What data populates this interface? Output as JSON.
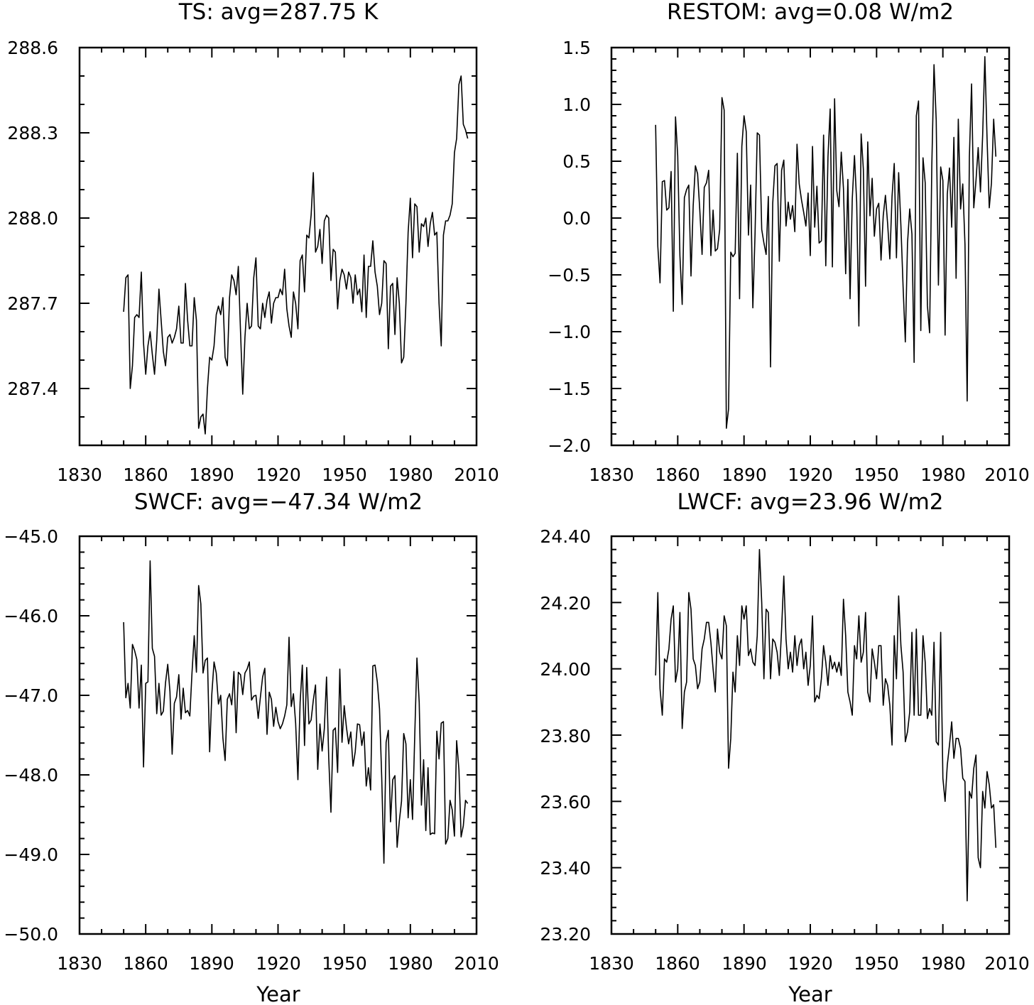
{
  "chart_data": [
    {
      "type": "line",
      "title": "TS: avg=287.75 K",
      "xlabel": "",
      "ylabel": "",
      "xlim": [
        1830,
        2010
      ],
      "ylim": [
        287.2,
        288.6
      ],
      "xticks": [
        1830,
        1860,
        1890,
        1920,
        1950,
        1980,
        2010
      ],
      "xtick_labels": [
        "1830",
        "1860",
        "1890",
        "1920",
        "1950",
        "1980",
        "2010"
      ],
      "yticks": [
        287.4,
        287.7,
        288.0,
        288.3,
        288.6
      ],
      "ytick_labels": [
        "287.4",
        "287.7",
        "288.0",
        "288.3",
        "288.6"
      ],
      "y_minor_step": 0.1,
      "x_start": 1850,
      "grid": false,
      "series": [
        {
          "values": [
            287.67,
            287.79,
            287.8,
            287.4,
            287.48,
            287.65,
            287.66,
            287.65,
            287.81,
            287.56,
            287.45,
            287.55,
            287.6,
            287.52,
            287.45,
            287.57,
            287.75,
            287.64,
            287.53,
            287.48,
            287.58,
            287.59,
            287.56,
            287.58,
            287.61,
            287.69,
            287.56,
            287.56,
            287.77,
            287.64,
            287.55,
            287.55,
            287.72,
            287.64,
            287.26,
            287.3,
            287.31,
            287.24,
            287.4,
            287.51,
            287.5,
            287.55,
            287.66,
            287.69,
            287.66,
            287.72,
            287.51,
            287.48,
            287.72,
            287.8,
            287.78,
            287.73,
            287.83,
            287.6,
            287.38,
            287.58,
            287.7,
            287.61,
            287.62,
            287.79,
            287.86,
            287.62,
            287.61,
            287.7,
            287.65,
            287.71,
            287.74,
            287.63,
            287.7,
            287.72,
            287.72,
            287.75,
            287.73,
            287.82,
            287.68,
            287.62,
            287.58,
            287.74,
            287.7,
            287.61,
            287.85,
            287.87,
            287.74,
            287.94,
            287.93,
            288.01,
            288.16,
            287.88,
            287.9,
            287.96,
            287.84,
            287.99,
            288.01,
            288.0,
            287.78,
            287.89,
            287.88,
            287.68,
            287.78,
            287.82,
            287.8,
            287.75,
            287.81,
            287.79,
            287.7,
            287.8,
            287.73,
            287.75,
            287.67,
            287.87,
            287.65,
            287.83,
            287.83,
            287.92,
            287.81,
            287.76,
            287.66,
            287.7,
            287.85,
            287.84,
            287.54,
            287.76,
            287.77,
            287.59,
            287.79,
            287.7,
            287.49,
            287.51,
            287.7,
            287.95,
            288.07,
            287.86,
            288.05,
            288.04,
            287.88,
            287.98,
            287.97,
            288.0,
            287.9,
            287.98,
            288.02,
            287.94,
            287.95,
            287.7,
            287.55,
            287.94,
            287.99,
            287.99,
            288.01,
            288.05,
            288.23,
            288.28,
            288.47,
            288.5,
            288.33,
            288.31,
            288.28
          ]
        }
      ]
    },
    {
      "type": "line",
      "title": "RESTOM: avg=0.08 W/m2",
      "xlabel": "",
      "ylabel": "",
      "xlim": [
        1830,
        2010
      ],
      "ylim": [
        -2.0,
        1.5
      ],
      "xticks": [
        1830,
        1860,
        1890,
        1920,
        1950,
        1980,
        2010
      ],
      "xtick_labels": [
        "1830",
        "1860",
        "1890",
        "1920",
        "1950",
        "1980",
        "2010"
      ],
      "yticks": [
        -2.0,
        -1.5,
        -1.0,
        -0.5,
        0.0,
        0.5,
        1.0,
        1.5
      ],
      "ytick_labels": [
        "−2.0",
        "−1.5",
        "−1.0",
        "−0.5",
        "0.0",
        "0.5",
        "1.0",
        "1.5"
      ],
      "y_minor_step": 0.1,
      "x_start": 1850,
      "grid": false,
      "series": [
        {
          "values": [
            0.82,
            -0.25,
            -0.57,
            0.32,
            0.33,
            0.07,
            0.09,
            0.41,
            -0.82,
            0.89,
            0.55,
            -0.33,
            -0.76,
            0.18,
            0.25,
            0.29,
            -0.51,
            0.11,
            0.46,
            0.39,
            0.07,
            -0.32,
            0.27,
            0.31,
            0.42,
            -0.33,
            0.07,
            -0.29,
            -0.27,
            -0.1,
            1.06,
            0.95,
            -1.85,
            -1.68,
            -0.3,
            -0.34,
            -0.31,
            0.57,
            -0.71,
            0.63,
            0.9,
            0.76,
            -0.15,
            0.29,
            -0.79,
            -0.14,
            0.75,
            0.73,
            -0.1,
            -0.22,
            -0.32,
            0.19,
            -1.31,
            0.13,
            0.46,
            0.48,
            -0.38,
            0.42,
            0.51,
            -0.07,
            0.14,
            -0.01,
            0.11,
            -0.12,
            0.65,
            0.3,
            0.16,
            0.05,
            -0.07,
            0.22,
            -0.33,
            0.63,
            -0.08,
            0.28,
            -0.22,
            -0.2,
            0.73,
            -0.42,
            0.54,
            0.96,
            -0.43,
            1.05,
            0.24,
            0.1,
            0.58,
            0.26,
            -0.49,
            0.34,
            -0.71,
            0.17,
            0.55,
            0.14,
            -0.95,
            0.74,
            0.43,
            -0.6,
            0.67,
            0.02,
            0.35,
            -0.16,
            0.08,
            0.13,
            -0.37,
            0.02,
            0.2,
            -0.05,
            -0.36,
            0.19,
            0.48,
            -0.35,
            0.4,
            -0.07,
            -0.61,
            -1.09,
            -0.22,
            0.08,
            -0.14,
            -1.27,
            0.9,
            1.03,
            -0.99,
            0.53,
            0.31,
            -0.77,
            -1.01,
            0.46,
            1.35,
            0.86,
            -0.59,
            0.45,
            0.33,
            -1.03,
            0.21,
            0.44,
            -0.08,
            0.71,
            -0.53,
            0.87,
            0.08,
            0.3,
            -0.23,
            -1.61,
            0.54,
            1.18,
            0.09,
            0.33,
            0.62,
            0.23,
            0.73,
            1.42,
            0.7,
            0.09,
            0.31,
            0.87,
            0.54
          ]
        }
      ]
    },
    {
      "type": "line",
      "title": "SWCF: avg=−47.34 W/m2",
      "xlabel": "Year",
      "ylabel": "",
      "xlim": [
        1830,
        2010
      ],
      "ylim": [
        -50.0,
        -45.0
      ],
      "xticks": [
        1830,
        1860,
        1890,
        1920,
        1950,
        1980,
        2010
      ],
      "xtick_labels": [
        "1830",
        "1860",
        "1890",
        "1920",
        "1950",
        "1980",
        "2010"
      ],
      "yticks": [
        -50.0,
        -49.0,
        -48.0,
        -47.0,
        -46.0,
        -45.0
      ],
      "ytick_labels": [
        "−50.0",
        "−49.0",
        "−48.0",
        "−47.0",
        "−46.0",
        "−45.0"
      ],
      "y_minor_step": 0.2,
      "x_start": 1850,
      "grid": false,
      "series": [
        {
          "values": [
            -46.08,
            -47.03,
            -46.85,
            -47.16,
            -46.36,
            -46.44,
            -46.55,
            -47.16,
            -46.62,
            -47.9,
            -46.85,
            -46.83,
            -45.31,
            -46.41,
            -46.51,
            -47.23,
            -46.85,
            -47.25,
            -47.2,
            -46.84,
            -46.61,
            -46.95,
            -47.74,
            -47.1,
            -47.02,
            -46.74,
            -47.3,
            -46.91,
            -47.22,
            -47.19,
            -47.26,
            -46.71,
            -46.25,
            -46.71,
            -45.62,
            -45.85,
            -46.72,
            -46.56,
            -46.53,
            -47.71,
            -46.98,
            -46.58,
            -46.72,
            -47.11,
            -47.0,
            -47.54,
            -47.82,
            -47.05,
            -46.98,
            -47.12,
            -46.7,
            -47.47,
            -46.71,
            -46.74,
            -46.99,
            -46.72,
            -46.67,
            -46.58,
            -47.06,
            -47.01,
            -47.0,
            -47.29,
            -47.02,
            -46.77,
            -46.66,
            -47.49,
            -46.96,
            -47.05,
            -47.39,
            -47.15,
            -47.33,
            -47.42,
            -47.36,
            -47.26,
            -47.12,
            -46.27,
            -47.14,
            -46.98,
            -47.35,
            -48.06,
            -47.09,
            -46.62,
            -47.63,
            -46.65,
            -47.36,
            -47.31,
            -47.06,
            -46.87,
            -47.93,
            -47.36,
            -47.7,
            -47.42,
            -46.77,
            -47.79,
            -48.47,
            -47.44,
            -47.41,
            -47.97,
            -46.67,
            -47.59,
            -47.13,
            -47.4,
            -47.61,
            -47.46,
            -47.89,
            -47.71,
            -47.36,
            -47.37,
            -47.63,
            -47.46,
            -48.14,
            -47.91,
            -48.19,
            -46.63,
            -46.62,
            -46.83,
            -47.17,
            -48.03,
            -49.11,
            -47.59,
            -47.44,
            -48.59,
            -48.06,
            -48.01,
            -48.91,
            -48.58,
            -48.33,
            -47.48,
            -47.61,
            -48.54,
            -48.06,
            -48.56,
            -47.51,
            -46.53,
            -47.09,
            -48.38,
            -47.81,
            -48.7,
            -47.91,
            -48.75,
            -48.73,
            -48.74,
            -47.45,
            -47.8,
            -47.35,
            -47.33,
            -48.87,
            -48.8,
            -48.32,
            -48.44,
            -48.77,
            -47.57,
            -47.93,
            -48.78,
            -48.64,
            -48.32,
            -48.36
          ]
        }
      ]
    },
    {
      "type": "line",
      "title": "LWCF: avg=23.96 W/m2",
      "xlabel": "Year",
      "ylabel": "",
      "xlim": [
        1830,
        2010
      ],
      "ylim": [
        23.2,
        24.4
      ],
      "xticks": [
        1830,
        1860,
        1890,
        1920,
        1950,
        1980,
        2010
      ],
      "xtick_labels": [
        "1830",
        "1860",
        "1890",
        "1920",
        "1950",
        "1980",
        "2010"
      ],
      "yticks": [
        23.2,
        23.4,
        23.6,
        23.8,
        24.0,
        24.2,
        24.4
      ],
      "ytick_labels": [
        "23.20",
        "23.40",
        "23.60",
        "23.80",
        "24.00",
        "24.20",
        "24.40"
      ],
      "y_minor_step": 0.04,
      "x_start": 1850,
      "grid": false,
      "series": [
        {
          "values": [
            23.98,
            24.23,
            23.94,
            23.86,
            24.03,
            24.02,
            24.06,
            24.15,
            24.19,
            23.96,
            24.0,
            24.17,
            23.82,
            23.93,
            23.96,
            24.23,
            24.18,
            24.03,
            24.01,
            23.94,
            23.96,
            24.06,
            24.09,
            24.14,
            24.14,
            24.08,
            24.0,
            23.93,
            24.12,
            24.05,
            24.03,
            24.16,
            24.13,
            23.7,
            23.79,
            23.99,
            23.93,
            24.1,
            24.01,
            24.19,
            24.15,
            24.19,
            24.04,
            24.06,
            24.02,
            24.01,
            24.1,
            24.36,
            24.2,
            23.97,
            24.18,
            24.17,
            23.97,
            24.09,
            24.08,
            24.05,
            23.98,
            24.12,
            24.28,
            24.09,
            24.0,
            24.05,
            23.99,
            24.1,
            24.01,
            24.07,
            24.09,
            24.0,
            24.05,
            23.95,
            24.01,
            24.16,
            23.9,
            23.92,
            23.91,
            23.97,
            24.07,
            24.02,
            23.95,
            24.04,
            24.0,
            24.02,
            23.99,
            24.02,
            23.98,
            24.21,
            24.1,
            23.93,
            23.9,
            23.86,
            24.07,
            24.03,
            24.16,
            24.02,
            24.05,
            24.17,
            23.93,
            23.9,
            24.06,
            24.02,
            23.97,
            24.07,
            24.07,
            23.89,
            23.97,
            23.95,
            23.89,
            23.77,
            24.1,
            23.97,
            24.22,
            24.07,
            23.99,
            23.78,
            23.81,
            23.87,
            24.11,
            23.86,
            24.12,
            23.86,
            23.86,
            24.1,
            24.02,
            23.85,
            23.88,
            23.86,
            24.08,
            23.78,
            23.77,
            24.11,
            23.67,
            23.6,
            23.71,
            23.77,
            23.84,
            23.73,
            23.79,
            23.79,
            23.76,
            23.67,
            23.66,
            23.3,
            23.63,
            23.61,
            23.7,
            23.74,
            23.43,
            23.4,
            23.63,
            23.58,
            23.69,
            23.65,
            23.58,
            23.59,
            23.46
          ]
        }
      ]
    }
  ]
}
